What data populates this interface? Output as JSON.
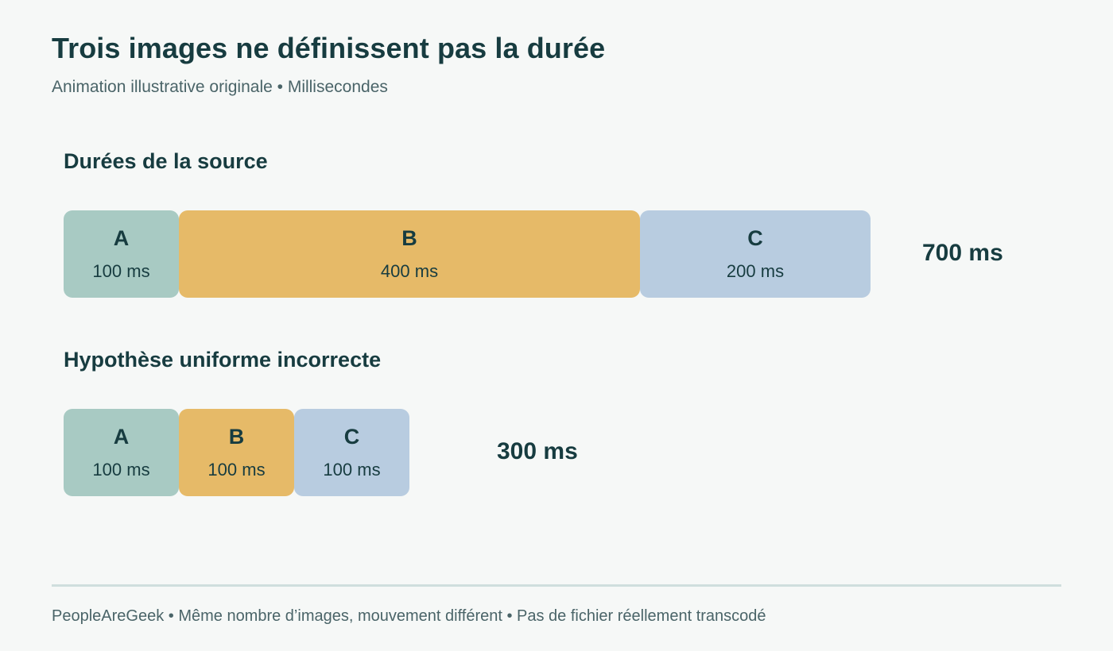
{
  "title": "Trois images ne définissent pas la durée",
  "subtitle": "Animation illustrative originale • Millisecondes",
  "colors": {
    "A": "#a8cac3",
    "B": "#e6ba68",
    "C": "#b8cce0",
    "text": "#173c40",
    "background": "#f6f8f7"
  },
  "source": {
    "label": "Durées de la source",
    "total_label": "700 ms",
    "frames": [
      {
        "name": "A",
        "duration_ms": 100,
        "duration_label": "100 ms"
      },
      {
        "name": "B",
        "duration_ms": 400,
        "duration_label": "400 ms"
      },
      {
        "name": "C",
        "duration_ms": 200,
        "duration_label": "200 ms"
      }
    ]
  },
  "uniform": {
    "label": "Hypothèse uniforme incorrecte",
    "total_label": "300 ms",
    "frames": [
      {
        "name": "A",
        "duration_ms": 100,
        "duration_label": "100 ms"
      },
      {
        "name": "B",
        "duration_ms": 100,
        "duration_label": "100 ms"
      },
      {
        "name": "C",
        "duration_ms": 100,
        "duration_label": "100 ms"
      }
    ]
  },
  "footer": "PeopleAreGeek • Même nombre d’images, mouvement différent • Pas de fichier réellement transcodé"
}
